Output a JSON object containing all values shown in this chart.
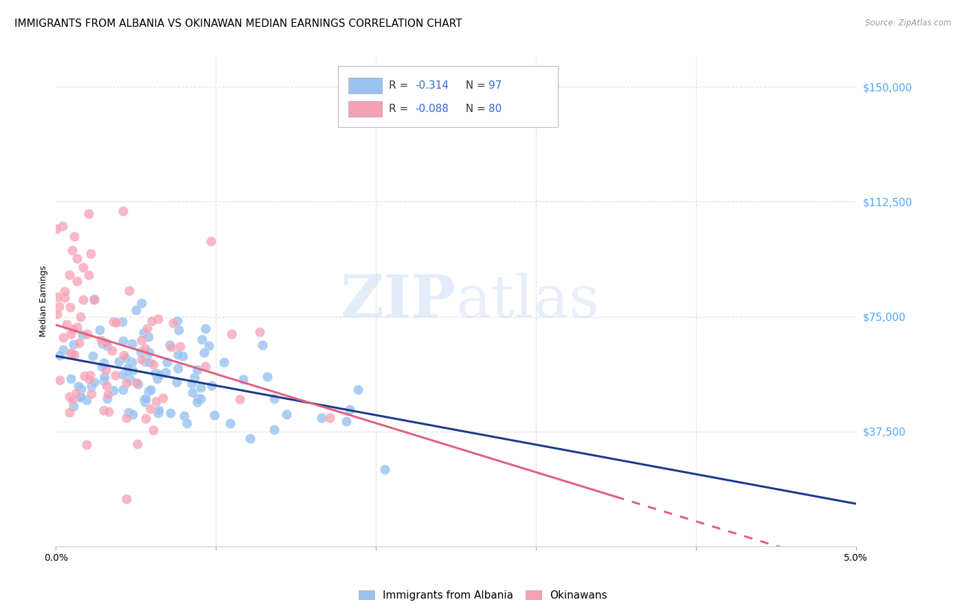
{
  "title": "IMMIGRANTS FROM ALBANIA VS OKINAWAN MEDIAN EARNINGS CORRELATION CHART",
  "source": "Source: ZipAtlas.com",
  "ylabel": "Median Earnings",
  "ytick_labels": [
    "$37,500",
    "$75,000",
    "$112,500",
    "$150,000"
  ],
  "ytick_values": [
    37500,
    75000,
    112500,
    150000
  ],
  "ymin": 0,
  "ymax": 160000,
  "xmin": 0.0,
  "xmax": 0.05,
  "watermark_zip": "ZIP",
  "watermark_atlas": "atlas",
  "blue_color": "#99c2f0",
  "pink_color": "#f5a0b5",
  "blue_line_color": "#1a3a8a",
  "pink_line_color": "#e06080",
  "grid_color": "#dddddd",
  "right_tick_color": "#4da6ff",
  "title_fontsize": 11,
  "axis_label_fontsize": 9,
  "tick_fontsize": 10,
  "legend_r_color": "#333333",
  "legend_n_color": "#3366cc",
  "seed": 12
}
